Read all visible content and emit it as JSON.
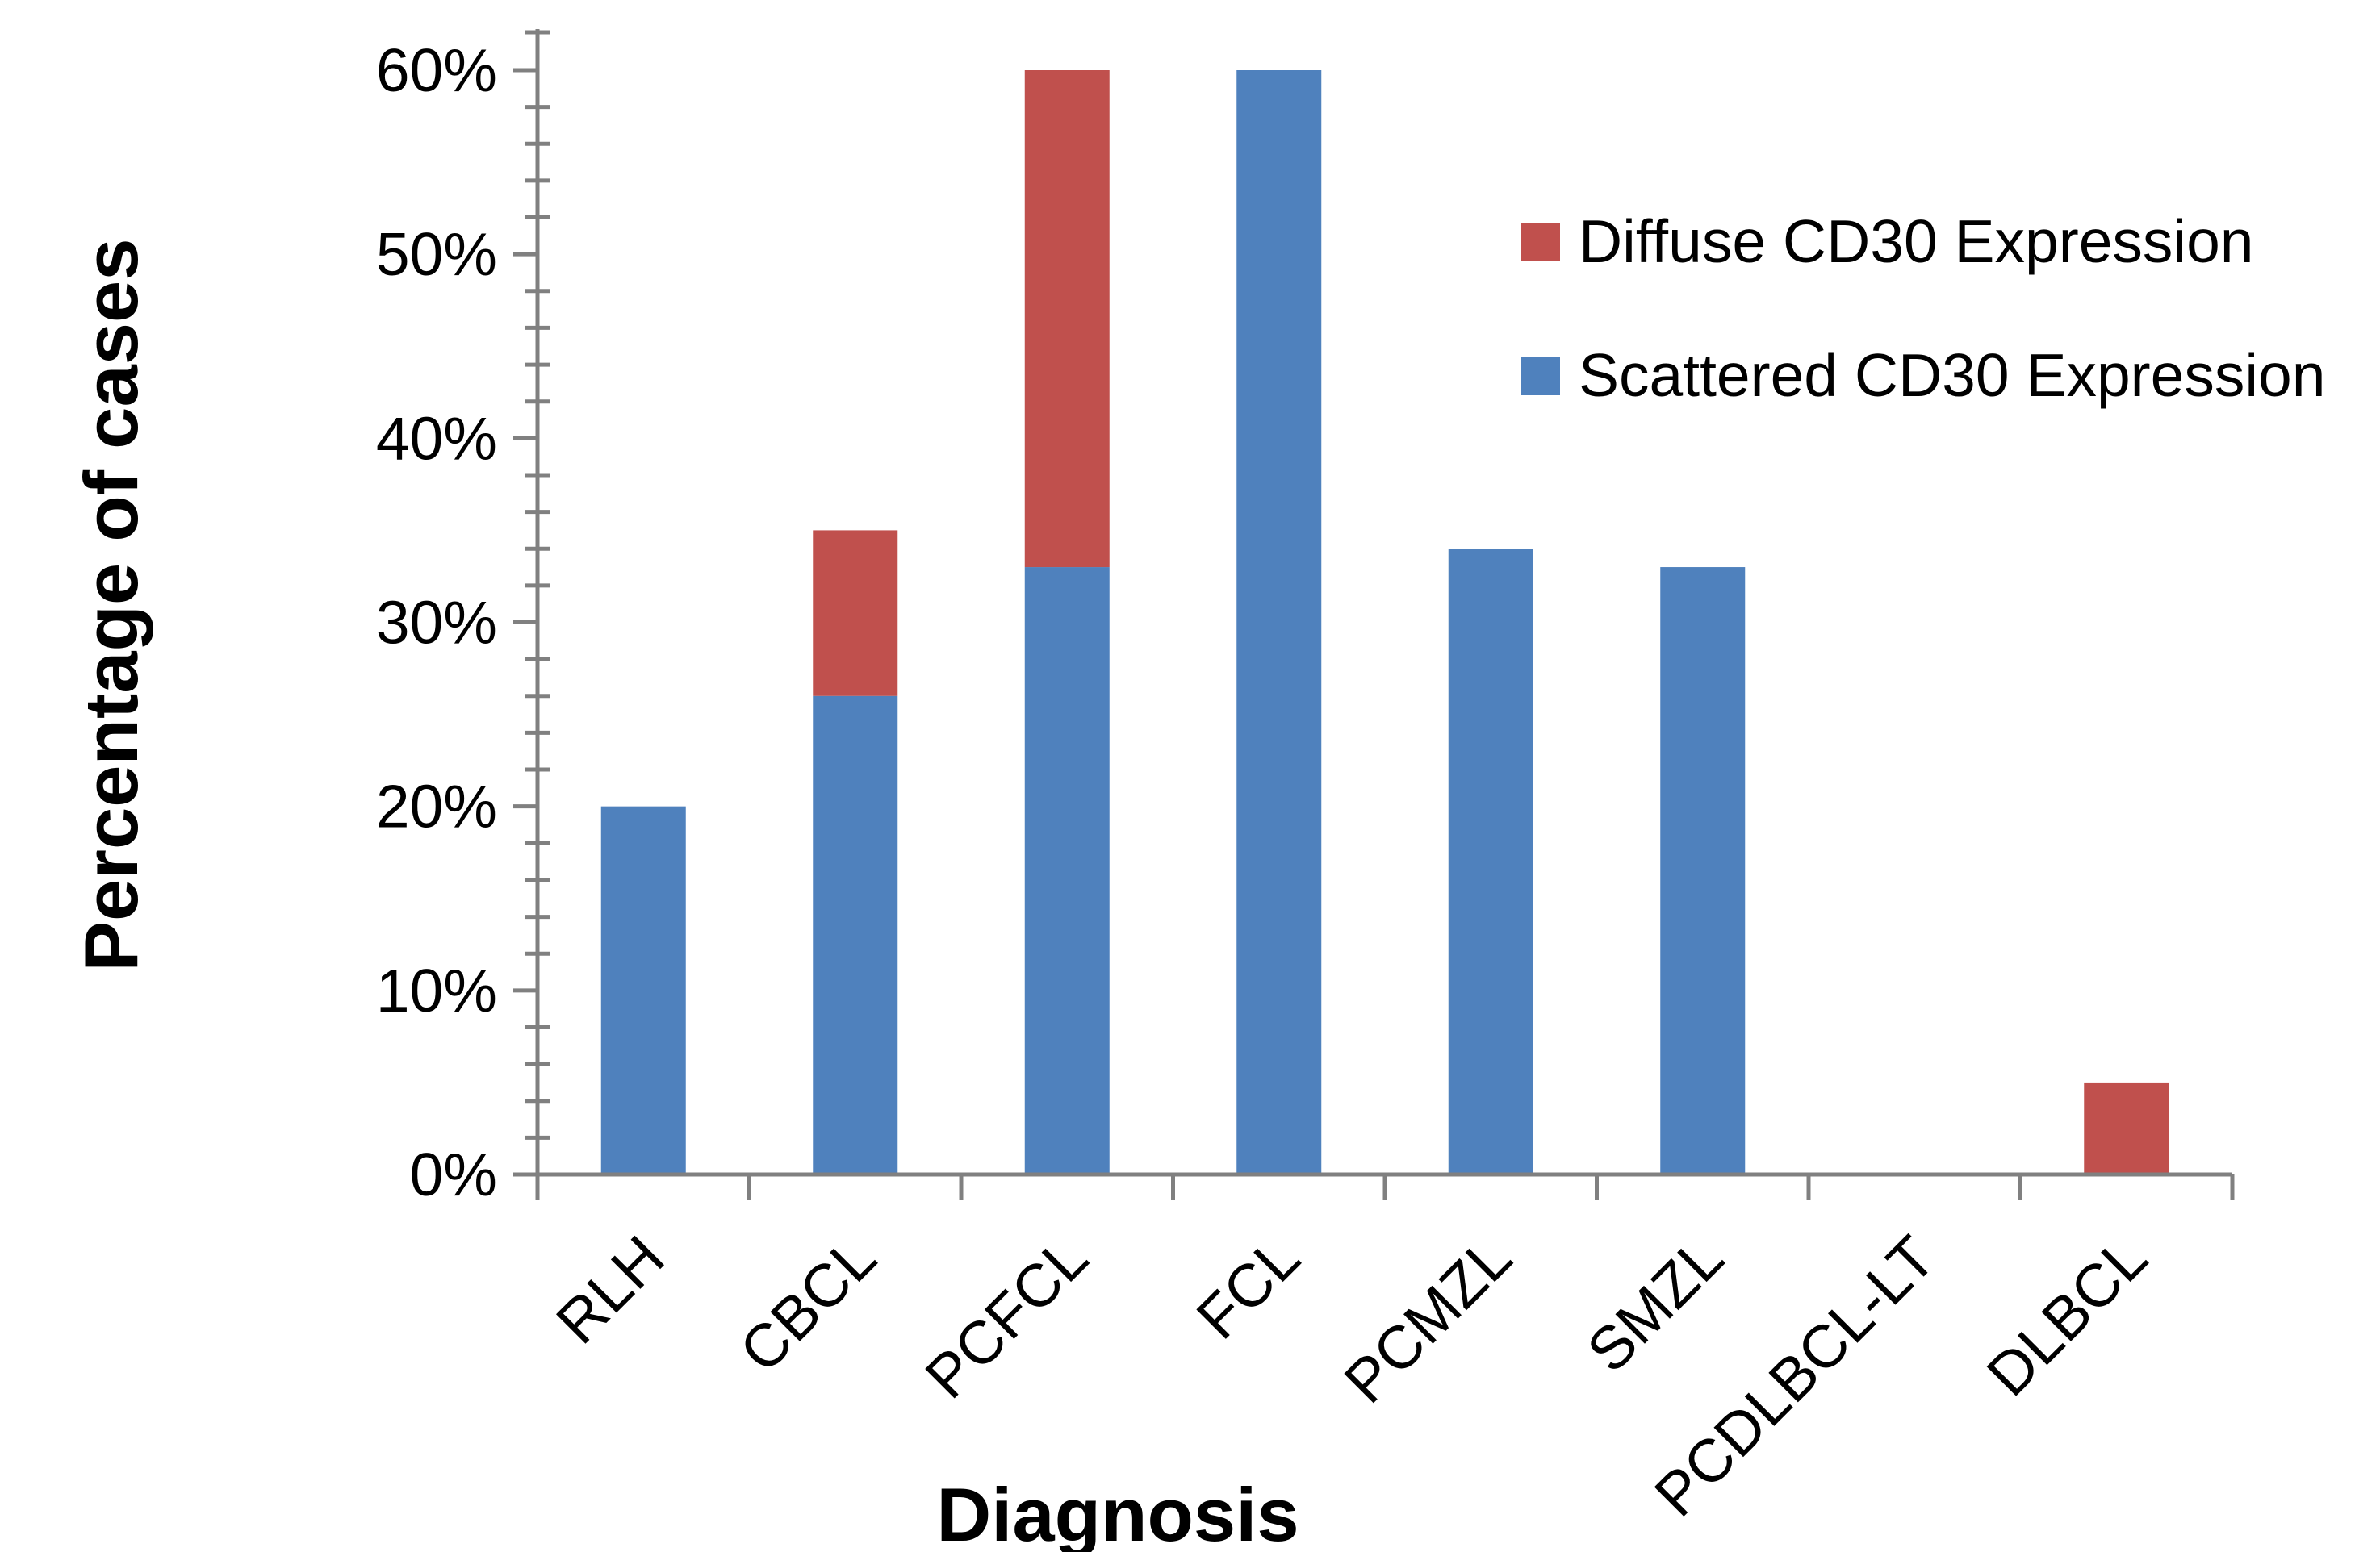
{
  "chart_data": {
    "type": "bar",
    "stacked": true,
    "categories": [
      "RLH",
      "CBCL",
      "PCFCL",
      "FCL",
      "PCMZL",
      "SMZL",
      "PCDLBCL-LT",
      "DLBCL"
    ],
    "series": [
      {
        "name": "Scattered CD30 Expression",
        "color": "#4F81BD",
        "values": [
          20,
          26,
          33,
          60,
          34,
          33,
          0,
          0
        ]
      },
      {
        "name": "Diffuse CD30 Expression",
        "color": "#C0504D",
        "values": [
          0,
          9,
          27,
          0,
          0,
          0,
          0,
          5
        ]
      }
    ],
    "xlabel": "Diagnosis",
    "ylabel": "Percentage of cases",
    "ylim": [
      0,
      60
    ],
    "yticks": [
      {
        "value": 0,
        "label": "0%"
      },
      {
        "value": 10,
        "label": "10%"
      },
      {
        "value": 20,
        "label": "20%"
      },
      {
        "value": 30,
        "label": "30%"
      },
      {
        "value": 40,
        "label": "40%"
      },
      {
        "value": 50,
        "label": "50%"
      },
      {
        "value": 60,
        "label": "60%"
      }
    ],
    "legend": {
      "placement": "top-right",
      "entries": [
        {
          "label": "Diffuse CD30 Expression",
          "color": "#C0504D"
        },
        {
          "label": "Scattered CD30 Expression",
          "color": "#4F81BD"
        }
      ]
    },
    "grid": false
  }
}
